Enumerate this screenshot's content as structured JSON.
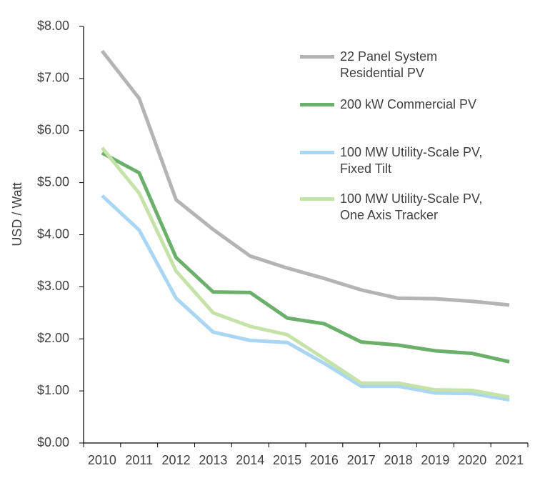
{
  "chart_data": {
    "type": "line",
    "y_label": "USD / Watt",
    "categories": [
      "2010",
      "2011",
      "2012",
      "2013",
      "2014",
      "2015",
      "2016",
      "2017",
      "2018",
      "2019",
      "2020",
      "2021"
    ],
    "series": [
      {
        "name": "22 Panel System\nResidential PV",
        "color": "#b4b4b4",
        "values": [
          7.53,
          6.62,
          4.67,
          4.1,
          3.59,
          3.36,
          3.16,
          2.94,
          2.78,
          2.77,
          2.72,
          2.65
        ]
      },
      {
        "name": "200 kW Commercial PV",
        "color": "#6aaf6a",
        "values": [
          5.57,
          5.19,
          3.56,
          2.9,
          2.89,
          2.4,
          2.29,
          1.94,
          1.88,
          1.77,
          1.72,
          1.56
        ]
      },
      {
        "name": "100 MW Utility-Scale PV,\nFixed Tilt",
        "color": "#a9d6f2",
        "values": [
          4.75,
          4.09,
          2.78,
          2.13,
          1.97,
          1.93,
          1.53,
          1.09,
          1.09,
          0.96,
          0.95,
          0.83
        ]
      },
      {
        "name": "100 MW Utility-Scale PV,\nOne Axis Tracker",
        "color": "#c5e2a8",
        "values": [
          5.67,
          4.8,
          3.3,
          2.5,
          2.24,
          2.08,
          1.62,
          1.15,
          1.15,
          1.02,
          1.01,
          0.88
        ]
      }
    ],
    "ylim": [
      0,
      8
    ],
    "yticks": [
      {
        "value": 0,
        "label": "$0.00"
      },
      {
        "value": 1,
        "label": "$1.00"
      },
      {
        "value": 2,
        "label": "$2.00"
      },
      {
        "value": 3,
        "label": "$3.00"
      },
      {
        "value": 4,
        "label": "$4.00"
      },
      {
        "value": 5,
        "label": "$5.00"
      },
      {
        "value": 6,
        "label": "$6.00"
      },
      {
        "value": 7,
        "label": "$7.00"
      },
      {
        "value": 8,
        "label": "$8.00"
      }
    ],
    "grid": false
  }
}
